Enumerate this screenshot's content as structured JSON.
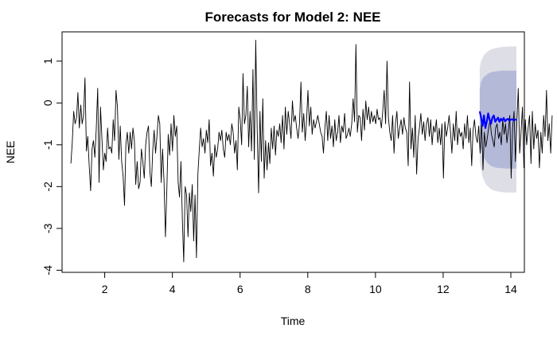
{
  "chart_data": {
    "type": "line",
    "title": "Forecasts for Model 2: NEE",
    "xlabel": "Time",
    "ylabel": "NEE",
    "xlim": [
      0.74,
      14.4
    ],
    "ylim": [
      -4.05,
      1.7
    ],
    "x_ticks": [
      2,
      4,
      6,
      8,
      10,
      12,
      14
    ],
    "y_ticks": [
      -4,
      -3,
      -2,
      -1,
      0,
      1
    ],
    "grid": false,
    "legend": "none",
    "series": [
      {
        "kind": "observed",
        "color": "#000000",
        "x_start": 1.0,
        "x_step": 0.0417,
        "values": [
          -1.45,
          -0.95,
          -0.2,
          -0.5,
          -0.35,
          0.25,
          -0.6,
          -0.05,
          -0.5,
          -0.3,
          0.6,
          -1.15,
          -0.8,
          -1.5,
          -2.1,
          -1.1,
          -0.9,
          -1.3,
          -0.6,
          0.35,
          -1.9,
          -0.1,
          -0.85,
          -1.6,
          -1.2,
          -1.4,
          -0.6,
          -1.1,
          -1.05,
          -1.2,
          -0.4,
          -0.9,
          0.3,
          -0.1,
          -1.35,
          -0.55,
          -1.4,
          -1.75,
          -2.45,
          -1.0,
          -0.7,
          -1.2,
          -0.7,
          -1.1,
          -0.6,
          -0.9,
          -1.95,
          -1.4,
          -2.05,
          -1.9,
          -1.1,
          -1.4,
          -1.8,
          -1.0,
          -0.7,
          -0.55,
          -1.65,
          -2.0,
          -1.15,
          -0.65,
          -1.2,
          -0.8,
          -0.3,
          -0.5,
          -1.9,
          -1.1,
          -1.85,
          -3.2,
          -2.05,
          -0.75,
          -1.25,
          -0.5,
          -1.15,
          -0.3,
          -0.8,
          -0.55,
          -1.9,
          -2.25,
          -1.4,
          -2.8,
          -3.8,
          -2.0,
          -2.2,
          -3.2,
          -2.15,
          -2.6,
          -1.95,
          -3.3,
          -2.2,
          -3.7,
          -1.7,
          -1.1,
          -0.6,
          -1.05,
          -0.85,
          -1.2,
          -0.65,
          -0.95,
          -0.4,
          -1.5,
          -1.2,
          -1.75,
          -1.0,
          -1.3,
          -1.1,
          -0.7,
          -0.9,
          -0.65,
          -1.1,
          -1.3,
          -0.7,
          -0.9,
          -0.75,
          -1.0,
          -0.5,
          -0.7,
          -1.2,
          -0.9,
          -1.6,
          -0.1,
          -0.4,
          -1.0,
          0.7,
          -0.5,
          -0.3,
          0.4,
          -1.05,
          -0.2,
          -1.15,
          0.8,
          -1.35,
          1.5,
          -0.6,
          -2.15,
          -0.2,
          -1.4,
          0.1,
          -1.8,
          -0.9,
          -1.6,
          -0.95,
          -1.45,
          -0.6,
          -1.1,
          -0.55,
          -1.25,
          -0.65,
          -0.8,
          -0.5,
          -0.95,
          -0.3,
          -1.1,
          -0.1,
          -0.75,
          -0.2,
          -0.5,
          -0.85,
          0.05,
          -0.45,
          -0.3,
          -0.6,
          -0.85,
          -0.5,
          0.5,
          -0.7,
          -0.25,
          -0.9,
          -0.4,
          0.3,
          -0.55,
          -0.1,
          -0.75,
          -0.4,
          -0.6,
          -0.45,
          -0.3,
          -0.5,
          -0.7,
          -0.8,
          -1.2,
          -0.6,
          -0.2,
          -0.9,
          -0.3,
          -0.85,
          -0.55,
          -1.05,
          -0.4,
          -0.9,
          -0.7,
          -0.3,
          -0.95,
          -0.55,
          -0.7,
          -0.25,
          -0.85,
          -0.75,
          -0.6,
          -0.8,
          -0.5,
          0.1,
          -0.45,
          1.4,
          -0.7,
          -0.3,
          -0.35,
          -0.9,
          -0.15,
          -0.65,
          0.05,
          -0.4,
          -0.1,
          -0.5,
          -0.2,
          -0.45,
          -0.3,
          -0.5,
          -0.15,
          -0.4,
          -0.35,
          -0.6,
          -0.2,
          0.3,
          -0.5,
          1.0,
          -0.35,
          -0.7,
          -0.9,
          -0.3,
          -1.2,
          -0.5,
          -0.2,
          -0.85,
          -0.6,
          -0.4,
          -0.75,
          -0.35,
          -0.6,
          -0.7,
          -1.5,
          0.5,
          -1.1,
          -0.6,
          -1.3,
          -0.3,
          -1.7,
          -0.85,
          -0.6,
          -0.25,
          -0.75,
          -0.45,
          -0.9,
          -0.5,
          -0.35,
          -0.8,
          -0.4,
          -1.0,
          -0.55,
          -0.7,
          -0.4,
          -0.95,
          -0.6,
          -1.0,
          -0.5,
          -1.8,
          -0.45,
          -0.8,
          -0.6,
          -0.3,
          -0.7,
          -1.2,
          -0.5,
          -0.9,
          -0.2,
          -1.0,
          -0.6,
          -0.8,
          -0.7,
          -1.1,
          -0.5,
          -0.85,
          -0.3,
          -0.95,
          -0.6,
          -1.5,
          -0.65,
          -0.4,
          -0.8,
          -0.95,
          -0.55,
          -1.2,
          -0.45,
          -1.6,
          -0.7,
          -1.05,
          -0.85,
          -0.6,
          -0.4,
          -0.75,
          -0.9,
          -1.05,
          -0.6,
          -0.5,
          -0.85,
          -0.7,
          -1.0,
          -0.4,
          -0.75,
          -0.5,
          -0.95,
          -0.65,
          -0.3,
          -1.8,
          -0.6,
          -0.2,
          -1.4,
          -0.5,
          0.35,
          -1.2,
          -0.7,
          -0.1,
          -1.55,
          -0.4,
          -1.0,
          -0.6,
          -0.3,
          -1.45,
          -0.2,
          -1.1,
          -0.5,
          -0.85,
          -0.65,
          -1.55,
          -0.7,
          -1.2,
          -0.3,
          -0.8,
          0.3,
          -0.9,
          -0.5,
          -1.2,
          -0.3
        ]
      },
      {
        "kind": "forecast",
        "color": "#0000ff",
        "x_start": 13.08,
        "x_step": 0.0417,
        "values": [
          -0.2,
          -0.35,
          -0.55,
          -0.3,
          -0.6,
          -0.45,
          -0.25,
          -0.4,
          -0.5,
          -0.35,
          -0.3,
          -0.45,
          -0.4,
          -0.35,
          -0.45,
          -0.38,
          -0.42,
          -0.36,
          -0.44,
          -0.4,
          -0.38,
          -0.42,
          -0.4,
          -0.39,
          -0.41,
          -0.4,
          -0.4
        ],
        "lower_80": [
          -0.95,
          -1.12,
          -1.22,
          -1.3,
          -1.36,
          -1.41,
          -1.45,
          -1.48,
          -1.5,
          -1.52,
          -1.53,
          -1.54,
          -1.55,
          -1.55,
          -1.56,
          -1.56,
          -1.56,
          -1.56,
          -1.57,
          -1.57,
          -1.57,
          -1.57,
          -1.57,
          -1.57,
          -1.57,
          -1.57,
          -1.57
        ],
        "upper_80": [
          0.35,
          0.5,
          0.58,
          0.62,
          0.65,
          0.68,
          0.7,
          0.72,
          0.73,
          0.74,
          0.75,
          0.75,
          0.76,
          0.76,
          0.76,
          0.77,
          0.77,
          0.77,
          0.77,
          0.77,
          0.77,
          0.77,
          0.77,
          0.77,
          0.77,
          0.77,
          0.77
        ],
        "lower_95": [
          -1.4,
          -1.6,
          -1.75,
          -1.85,
          -1.92,
          -1.97,
          -2.0,
          -2.03,
          -2.06,
          -2.08,
          -2.09,
          -2.1,
          -2.11,
          -2.12,
          -2.12,
          -2.13,
          -2.13,
          -2.13,
          -2.14,
          -2.14,
          -2.14,
          -2.14,
          -2.14,
          -2.14,
          -2.14,
          -2.14,
          -2.14
        ],
        "upper_95": [
          0.85,
          1.0,
          1.08,
          1.14,
          1.18,
          1.21,
          1.24,
          1.26,
          1.28,
          1.29,
          1.3,
          1.31,
          1.32,
          1.32,
          1.33,
          1.33,
          1.34,
          1.34,
          1.34,
          1.34,
          1.35,
          1.35,
          1.35,
          1.35,
          1.35,
          1.35,
          1.35
        ],
        "band_95_color": "#dedee6",
        "band_80_color": "#b4b9d8"
      }
    ]
  }
}
